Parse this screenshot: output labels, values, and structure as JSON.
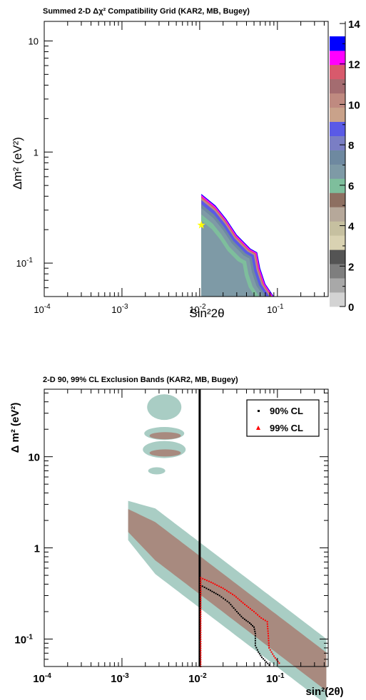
{
  "colors": {
    "palette": [
      "#d3d3d3",
      "#a8a8a8",
      "#7e7e7e",
      "#545454",
      "#d9d2b2",
      "#c6c0a0",
      "#b6a89a",
      "#8d6f61",
      "#7ebe9c",
      "#7e9aa6",
      "#6e89a0",
      "#7a7ec4",
      "#5a5ae6",
      "#c9a28a",
      "#bf8a80",
      "#a46c70",
      "#d85a6c",
      "#ff00ff",
      "#0000ff"
    ],
    "band99": "#a9cdc4",
    "band90": "#a88a7f",
    "cl90": "#000000",
    "cl99": "#ff0000",
    "bestfit": "#ffff00"
  },
  "chart_data": [
    {
      "type": "heatmap",
      "title": "Summed 2-D Δχ² Compatibility Grid (KAR2, MB, Bugey)",
      "xlabel": "Sin²2θ",
      "ylabel": "Δm² (eV²)",
      "xscale": "log",
      "yscale": "log",
      "xlim": [
        0.0001,
        0.45
      ],
      "ylim": [
        0.05,
        15
      ],
      "x_ticks": [
        {
          "t": "10",
          "e": "-4"
        },
        {
          "t": "10",
          "e": "-3"
        },
        {
          "t": "10",
          "e": "-2"
        },
        {
          "t": "10",
          "e": "-1"
        }
      ],
      "y_ticks": [
        {
          "t": "10",
          "e": "-1"
        },
        {
          "t": "1",
          "e": ""
        },
        {
          "t": "10",
          "e": ""
        }
      ],
      "colorbar": {
        "range": [
          0,
          14
        ],
        "labels": [
          "0",
          "2",
          "4",
          "6",
          "8",
          "10",
          "12",
          "14"
        ]
      },
      "best_fit": {
        "x": 0.0105,
        "y": 0.22
      },
      "region_edge": [
        [
          0.0105,
          0.42
        ],
        [
          0.016,
          0.33
        ],
        [
          0.022,
          0.25
        ],
        [
          0.03,
          0.18
        ],
        [
          0.045,
          0.135
        ],
        [
          0.055,
          0.125
        ],
        [
          0.06,
          0.09
        ],
        [
          0.07,
          0.065
        ],
        [
          0.09,
          0.05
        ]
      ]
    },
    {
      "type": "contour",
      "title": "2-D 90, 99% CL Exclusion Bands (KAR2, MB, Bugey)",
      "xlabel": "sin²(2θ)",
      "ylabel": "Δ m² (eV²)",
      "xscale": "log",
      "yscale": "log",
      "xlim": [
        0.0001,
        0.45
      ],
      "ylim": [
        0.05,
        55
      ],
      "x_ticks": [
        {
          "t": "10",
          "e": "-4"
        },
        {
          "t": "10",
          "e": "-3"
        },
        {
          "t": "10",
          "e": "-2"
        },
        {
          "t": "10",
          "e": "-1"
        }
      ],
      "y_ticks": [
        {
          "t": "10",
          "e": "-1"
        },
        {
          "t": "1",
          "e": ""
        },
        {
          "t": "10",
          "e": ""
        }
      ],
      "vertical_line_x": 0.01,
      "legend": {
        "position": "top-right",
        "entries": [
          "90% CL",
          "99% CL"
        ]
      },
      "series": [
        {
          "name": "90% CL",
          "points": [
            [
              0.0102,
              0.05
            ],
            [
              0.0102,
              0.39
            ],
            [
              0.013,
              0.35
            ],
            [
              0.018,
              0.3
            ],
            [
              0.024,
              0.25
            ],
            [
              0.03,
              0.2
            ],
            [
              0.036,
              0.17
            ],
            [
              0.044,
              0.15
            ],
            [
              0.05,
              0.135
            ],
            [
              0.052,
              0.115
            ],
            [
              0.052,
              0.085
            ],
            [
              0.057,
              0.072
            ],
            [
              0.063,
              0.063
            ],
            [
              0.072,
              0.056
            ],
            [
              0.082,
              0.05
            ]
          ]
        },
        {
          "name": "99% CL",
          "points": [
            [
              0.0103,
              0.05
            ],
            [
              0.0103,
              0.47
            ],
            [
              0.014,
              0.42
            ],
            [
              0.02,
              0.36
            ],
            [
              0.028,
              0.3
            ],
            [
              0.038,
              0.24
            ],
            [
              0.05,
              0.2
            ],
            [
              0.062,
              0.17
            ],
            [
              0.074,
              0.155
            ],
            [
              0.076,
              0.115
            ],
            [
              0.078,
              0.08
            ],
            [
              0.09,
              0.065
            ],
            [
              0.11,
              0.052
            ]
          ]
        }
      ]
    }
  ]
}
